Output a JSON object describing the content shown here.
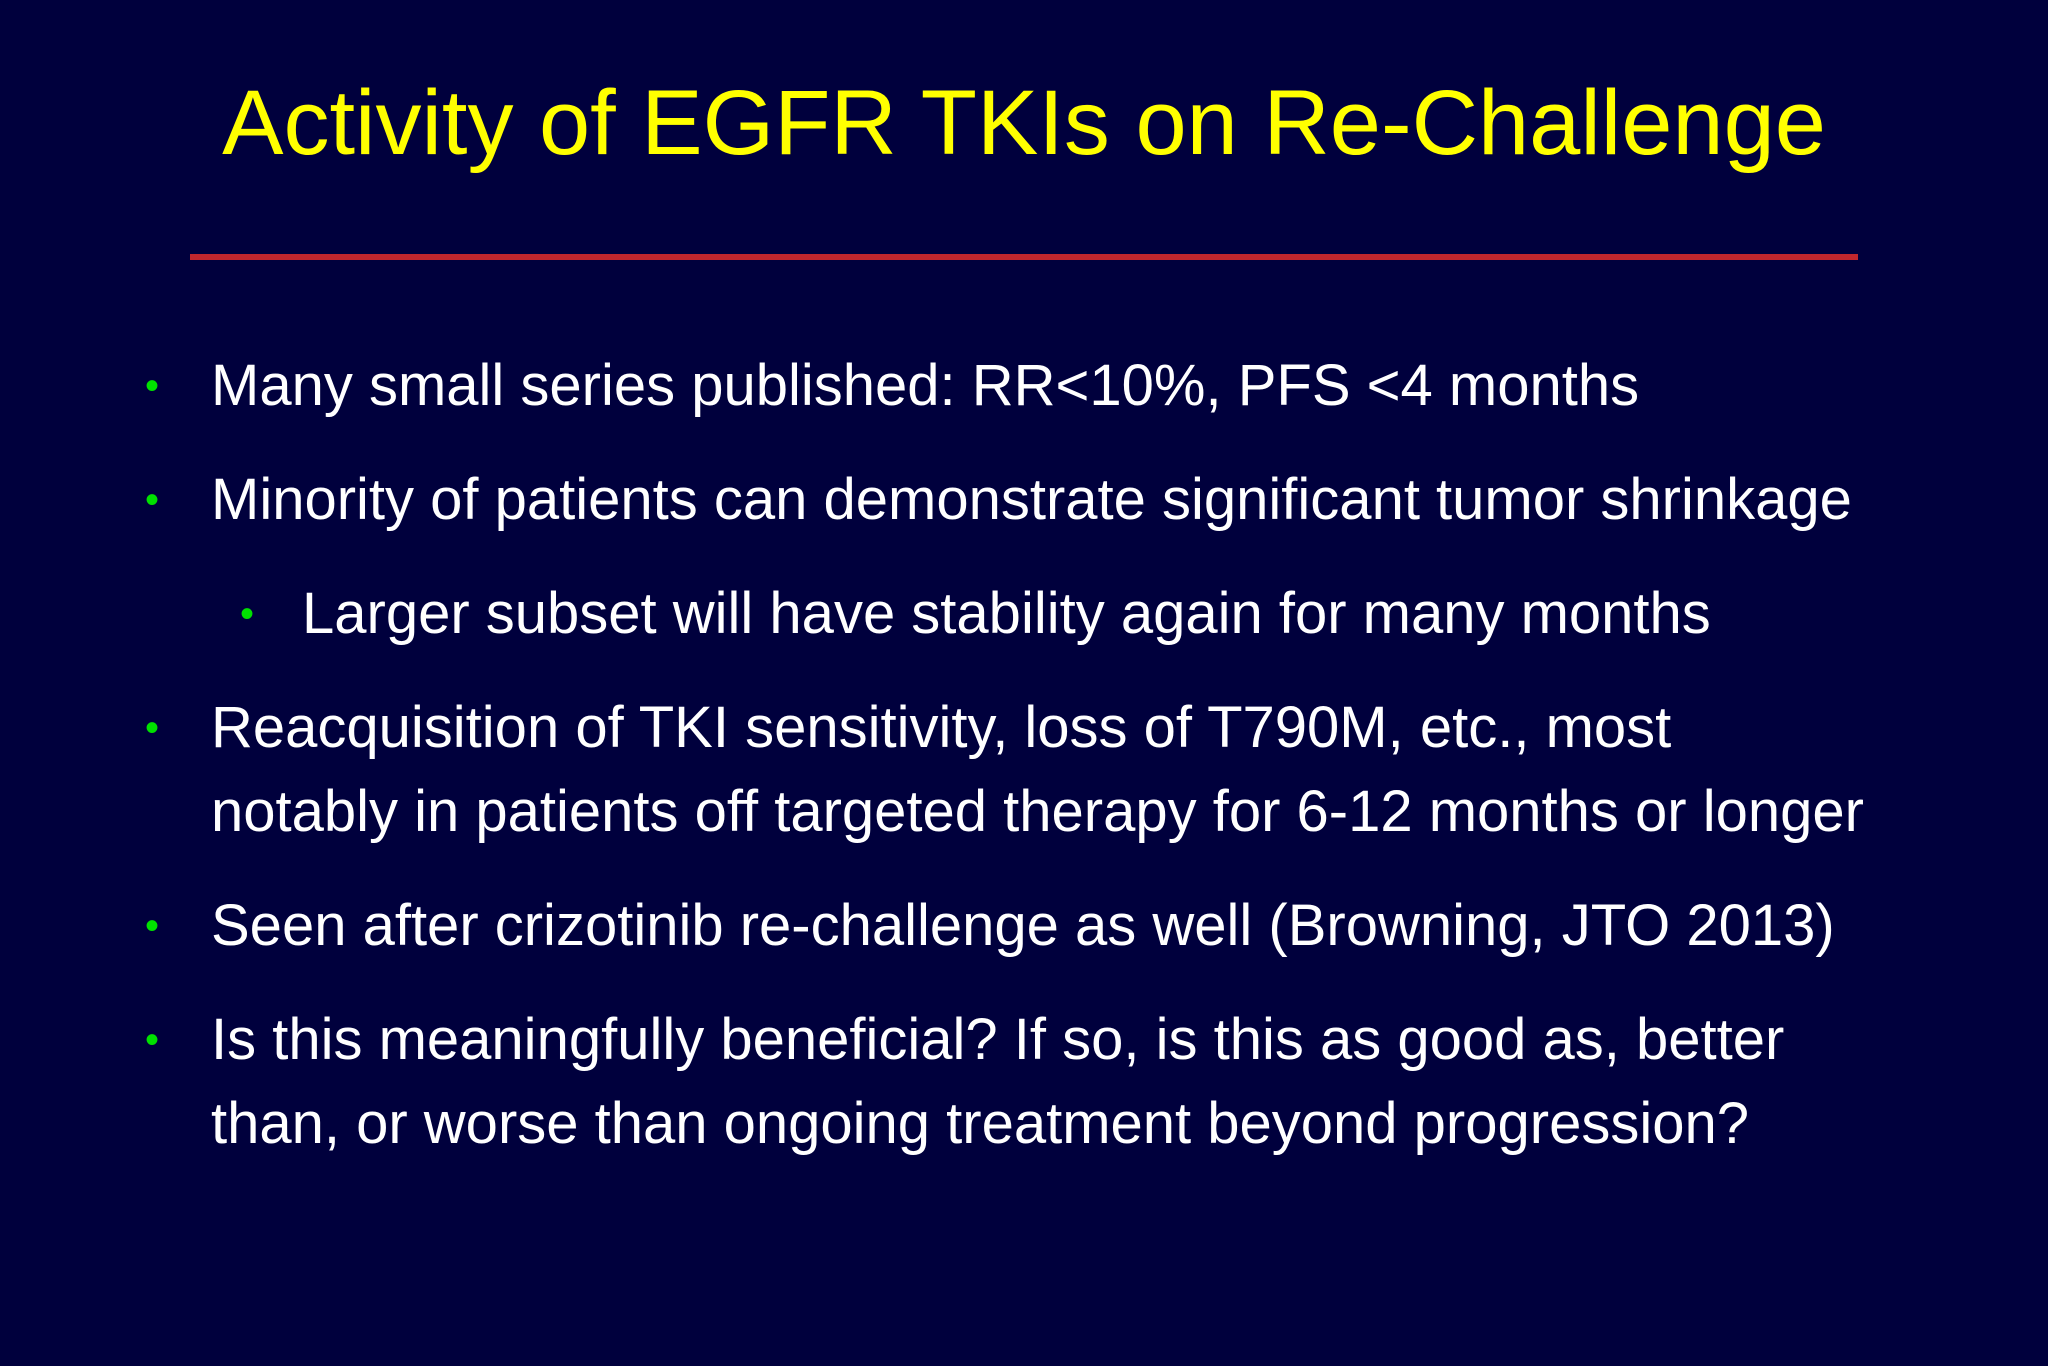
{
  "slide": {
    "title": "Activity of EGFR TKIs on Re-Challenge",
    "colors": {
      "background": "#00003d",
      "title": "#ffff00",
      "rule": "#c1272d",
      "bullet": "#00e000",
      "text": "#ffffff"
    },
    "bullet_glyph": "•",
    "bullets": [
      {
        "level": 1,
        "lines": [
          "Many small series published: RR<10%, PFS <4 months"
        ]
      },
      {
        "level": 1,
        "lines": [
          "Minority of patients can demonstrate significant tumor shrinkage"
        ]
      },
      {
        "level": 2,
        "lines": [
          "Larger subset will have stability again for many months"
        ]
      },
      {
        "level": 1,
        "lines": [
          "Reacquisition of TKI sensitivity, loss of T790M, etc., most",
          "notably in patients off targeted therapy for 6-12 months or longer"
        ]
      },
      {
        "level": 1,
        "lines": [
          "Seen after crizotinib re-challenge as well (Browning, JTO 2013)"
        ]
      },
      {
        "level": 1,
        "lines": [
          "Is this meaningfully beneficial? If so, is this as good as, better",
          "than, or worse than ongoing treatment beyond progression?"
        ]
      }
    ]
  }
}
